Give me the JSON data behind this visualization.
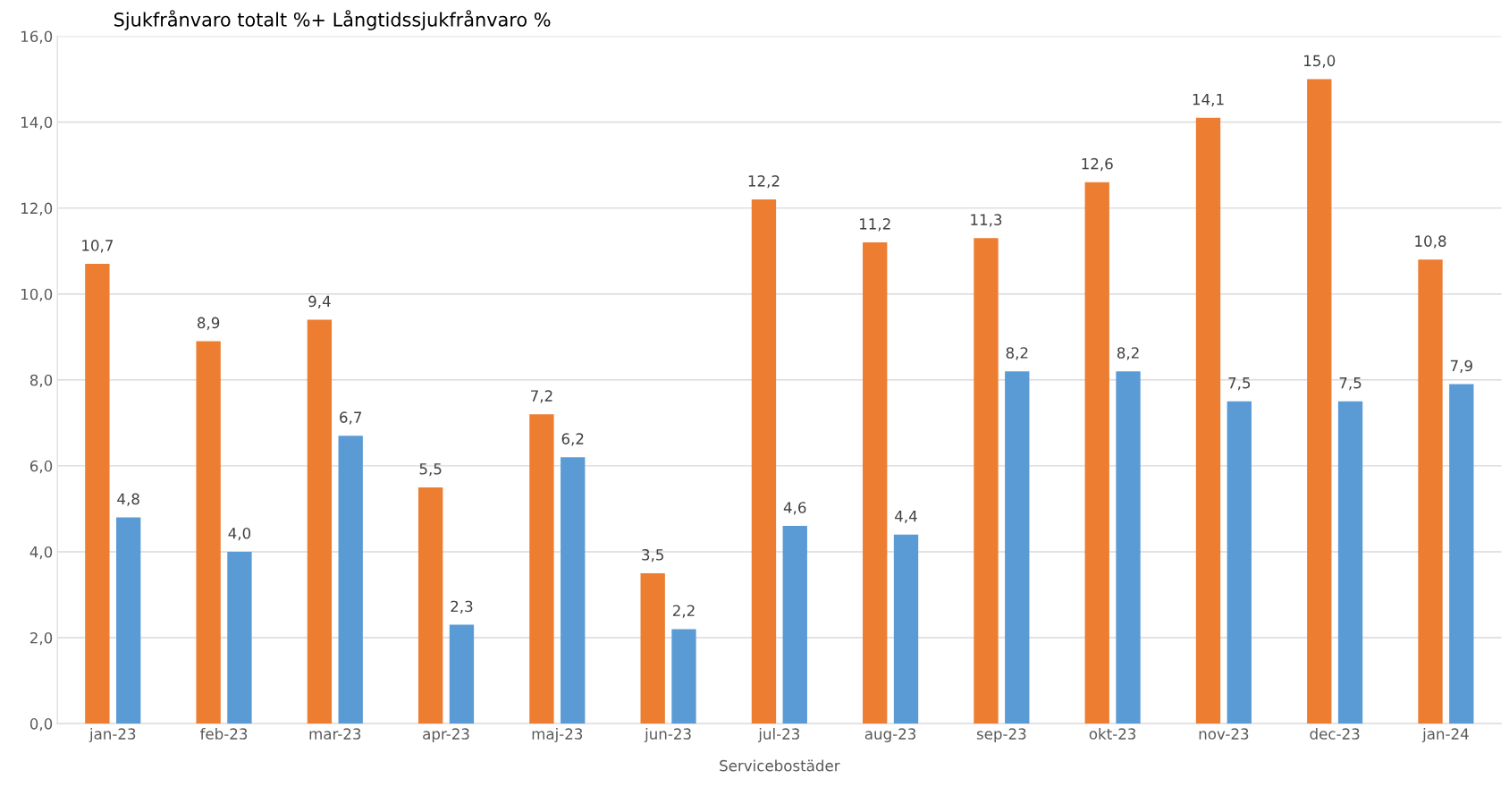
{
  "chart_data": {
    "type": "bar",
    "title": "Sjukfrånvaro totalt %+ Långtidssjukfrånvaro %",
    "xlabel": "Servicebostäder",
    "categories": [
      "jan-23",
      "feb-23",
      "mar-23",
      "apr-23",
      "maj-23",
      "jun-23",
      "jul-23",
      "aug-23",
      "sep-23",
      "okt-23",
      "nov-23",
      "dec-23",
      "jan-24"
    ],
    "series": [
      {
        "color": "#ed7d31",
        "values": [
          10.7,
          8.9,
          9.4,
          5.5,
          7.2,
          3.5,
          12.2,
          11.2,
          11.3,
          12.6,
          14.1,
          15.0,
          10.8
        ],
        "value_labels": [
          "10,7",
          "8,9",
          "9,4",
          "5,5",
          "7,2",
          "3,5",
          "12,2",
          "11,2",
          "11,3",
          "12,6",
          "14,1",
          "15,0",
          "10,8"
        ]
      },
      {
        "color": "#5b9bd5",
        "values": [
          4.8,
          4.0,
          6.7,
          2.3,
          6.2,
          2.2,
          4.6,
          4.4,
          8.2,
          8.2,
          7.5,
          7.5,
          7.9
        ],
        "value_labels": [
          "4,8",
          "4,0",
          "6,7",
          "2,3",
          "6,2",
          "2,2",
          "4,6",
          "4,4",
          "8,2",
          "8,2",
          "7,5",
          "7,5",
          "7,9"
        ]
      }
    ],
    "ylim": [
      0,
      16
    ],
    "yticks": [
      {
        "value": 0,
        "label": "0,0"
      },
      {
        "value": 2,
        "label": "2,0"
      },
      {
        "value": 4,
        "label": "4,0"
      },
      {
        "value": 6,
        "label": "6,0"
      },
      {
        "value": 8,
        "label": "8,0"
      },
      {
        "value": 10,
        "label": "10,0"
      },
      {
        "value": 12,
        "label": "12,0"
      },
      {
        "value": 14,
        "label": "14,0"
      },
      {
        "value": 16,
        "label": "16,0"
      }
    ],
    "grid": "y",
    "legend": false
  }
}
